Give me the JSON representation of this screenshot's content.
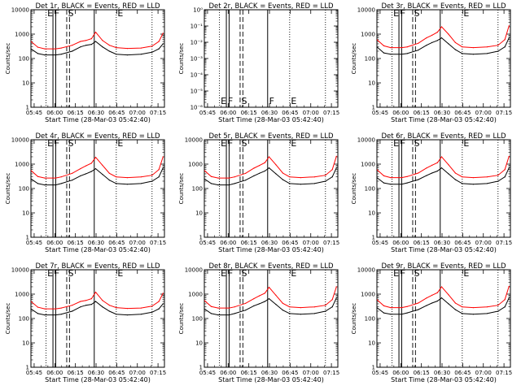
{
  "figure": {
    "colors": {
      "events": "#000000",
      "lld": "#ff0000",
      "background": "#ffffff"
    }
  },
  "shared": {
    "xlabel": "Start Time (28-Mar-03 05:42:40)",
    "ylabel": "Counts/sec",
    "x_tick_labels": [
      "05:45",
      "06:00",
      "06:15",
      "06:30",
      "06:45",
      "07:00",
      "07:15"
    ],
    "y_tick_labels": [
      "1",
      "10",
      "100",
      "1000",
      "10000"
    ],
    "y_tick_labels_empty": [
      "10⁰",
      "10⁻¹",
      "10⁻²",
      "10⁻³",
      "10⁻⁴",
      "10⁻⁵",
      "10⁻⁶"
    ]
  },
  "chart_data": [
    {
      "type": "line",
      "title": "Det 1r, BLACK = Events, RED = LLD",
      "xlabel": "Start Time (28-Mar-03 05:42:40)",
      "ylabel": "Counts/sec",
      "x_unit": "minutes after 05:42:40",
      "xlim": [
        0,
        97
      ],
      "ylim": [
        1,
        10000
      ],
      "y_scale": "log",
      "x": [
        0,
        5,
        10,
        18,
        22,
        30,
        36,
        40,
        44,
        47,
        52,
        57,
        62,
        70,
        80,
        88,
        93,
        96
      ],
      "series": [
        {
          "name": "BLACK = Events",
          "color": "#000000",
          "values": [
            250,
            160,
            140,
            140,
            150,
            200,
            300,
            350,
            380,
            500,
            300,
            200,
            150,
            140,
            150,
            180,
            250,
            400
          ]
        },
        {
          "name": "RED = LLD",
          "color": "#ff0000",
          "values": [
            500,
            290,
            250,
            250,
            270,
            350,
            500,
            550,
            650,
            1200,
            550,
            350,
            280,
            260,
            270,
            320,
            500,
            1100
          ]
        }
      ],
      "vlines": [
        {
          "x": 11,
          "style": "dotted",
          "label": "E"
        },
        {
          "x": 16,
          "style": "solid",
          "label": "F"
        },
        {
          "x": 18,
          "style": "solid"
        },
        {
          "x": 26,
          "style": "dashed",
          "label": "S"
        },
        {
          "x": 28,
          "style": "dashed"
        },
        {
          "x": 46,
          "style": "solid"
        },
        {
          "x": 62,
          "style": "dotted",
          "label": "E"
        },
        {
          "x": 88,
          "style": "dotted"
        }
      ]
    },
    {
      "type": "line",
      "title": "Det 2r, BLACK = Events, RED = LLD",
      "xlabel": "Start Time (28-Mar-03 05:42:40)",
      "ylabel": "Counts/sec",
      "x_unit": "minutes after 05:42:40",
      "xlim": [
        0,
        97
      ],
      "ylim": [
        1e-06,
        1
      ],
      "y_scale": "log",
      "x": [],
      "series": [],
      "vlines": [
        {
          "x": 11,
          "style": "dotted",
          "label": "E"
        },
        {
          "x": 16,
          "style": "solid",
          "label": "F"
        },
        {
          "x": 18,
          "style": "solid"
        },
        {
          "x": 26,
          "style": "dashed",
          "label": "S"
        },
        {
          "x": 28,
          "style": "dashed"
        },
        {
          "x": 46,
          "style": "solid",
          "label": "F"
        },
        {
          "x": 62,
          "style": "dotted",
          "label": "E"
        },
        {
          "x": 88,
          "style": "dotted"
        }
      ]
    },
    {
      "type": "line",
      "title": "Det 3r, BLACK = Events, RED = LLD",
      "xlabel": "Start Time (28-Mar-03 05:42:40)",
      "ylabel": "Counts/sec",
      "x_unit": "minutes after 05:42:40",
      "xlim": [
        0,
        97
      ],
      "ylim": [
        1,
        10000
      ],
      "y_scale": "log",
      "x": [
        0,
        5,
        10,
        18,
        22,
        30,
        36,
        40,
        44,
        47,
        52,
        57,
        62,
        70,
        80,
        88,
        93,
        96
      ],
      "series": [
        {
          "name": "BLACK = Events",
          "color": "#000000",
          "values": [
            300,
            170,
            150,
            150,
            160,
            220,
            350,
            450,
            550,
            700,
            400,
            230,
            160,
            150,
            160,
            200,
            300,
            700
          ]
        },
        {
          "name": "RED = LLD",
          "color": "#ff0000",
          "values": [
            600,
            330,
            280,
            280,
            300,
            420,
            700,
            900,
            1200,
            2000,
            1000,
            450,
            300,
            280,
            300,
            350,
            600,
            2200
          ]
        }
      ],
      "vlines": [
        {
          "x": 11,
          "style": "dotted",
          "label": "E"
        },
        {
          "x": 16,
          "style": "solid",
          "label": "F"
        },
        {
          "x": 18,
          "style": "solid"
        },
        {
          "x": 26,
          "style": "dashed",
          "label": "S"
        },
        {
          "x": 28,
          "style": "dashed"
        },
        {
          "x": 46,
          "style": "solid"
        },
        {
          "x": 62,
          "style": "dotted",
          "label": "E"
        },
        {
          "x": 88,
          "style": "dotted"
        }
      ]
    },
    {
      "type": "line",
      "title": "Det 4r, BLACK = Events, RED = LLD",
      "xlabel": "Start Time (28-Mar-03 05:42:40)",
      "ylabel": "Counts/sec",
      "x_unit": "minutes after 05:42:40",
      "xlim": [
        0,
        97
      ],
      "ylim": [
        1,
        10000
      ],
      "y_scale": "log",
      "x": [
        0,
        5,
        10,
        18,
        22,
        30,
        36,
        40,
        44,
        47,
        52,
        57,
        62,
        70,
        80,
        88,
        93,
        96
      ],
      "series": [
        {
          "name": "BLACK = Events",
          "color": "#000000",
          "values": [
            250,
            160,
            140,
            140,
            160,
            220,
            330,
            400,
            500,
            650,
            380,
            220,
            160,
            150,
            160,
            200,
            300,
            700
          ]
        },
        {
          "name": "RED = LLD",
          "color": "#ff0000",
          "values": [
            550,
            310,
            270,
            270,
            300,
            420,
            650,
            850,
            1100,
            1900,
            900,
            420,
            300,
            280,
            300,
            350,
            600,
            2000
          ]
        }
      ],
      "vlines": [
        {
          "x": 11,
          "style": "dotted",
          "label": "E"
        },
        {
          "x": 16,
          "style": "solid",
          "label": "F"
        },
        {
          "x": 18,
          "style": "solid"
        },
        {
          "x": 26,
          "style": "dashed",
          "label": "S"
        },
        {
          "x": 28,
          "style": "dashed"
        },
        {
          "x": 46,
          "style": "solid"
        },
        {
          "x": 62,
          "style": "dotted",
          "label": "E"
        },
        {
          "x": 88,
          "style": "dotted"
        }
      ]
    },
    {
      "type": "line",
      "title": "Det 5r, BLACK = Events, RED = LLD",
      "xlabel": "Start Time (28-Mar-03 05:42:40)",
      "ylabel": "Counts/sec",
      "x_unit": "minutes after 05:42:40",
      "xlim": [
        0,
        97
      ],
      "ylim": [
        1,
        10000
      ],
      "y_scale": "log",
      "x": [
        0,
        5,
        10,
        18,
        22,
        30,
        36,
        40,
        44,
        47,
        52,
        57,
        62,
        70,
        80,
        88,
        93,
        96
      ],
      "series": [
        {
          "name": "BLACK = Events",
          "color": "#000000",
          "values": [
            250,
            160,
            140,
            140,
            160,
            220,
            330,
            420,
            520,
            700,
            400,
            230,
            160,
            150,
            160,
            200,
            300,
            700
          ]
        },
        {
          "name": "RED = LLD",
          "color": "#ff0000",
          "values": [
            550,
            310,
            270,
            270,
            300,
            420,
            680,
            880,
            1150,
            2000,
            950,
            430,
            300,
            280,
            300,
            350,
            600,
            2100
          ]
        }
      ],
      "vlines": [
        {
          "x": 11,
          "style": "dotted",
          "label": "E"
        },
        {
          "x": 16,
          "style": "solid",
          "label": "F"
        },
        {
          "x": 18,
          "style": "solid"
        },
        {
          "x": 26,
          "style": "dashed",
          "label": "S"
        },
        {
          "x": 28,
          "style": "dashed"
        },
        {
          "x": 46,
          "style": "solid"
        },
        {
          "x": 62,
          "style": "dotted",
          "label": "E"
        },
        {
          "x": 88,
          "style": "dotted"
        }
      ]
    },
    {
      "type": "line",
      "title": "Det 6r, BLACK = Events, RED = LLD",
      "xlabel": "Start Time (28-Mar-03 05:42:40)",
      "ylabel": "Counts/sec",
      "x_unit": "minutes after 05:42:40",
      "xlim": [
        0,
        97
      ],
      "ylim": [
        1,
        10000
      ],
      "y_scale": "log",
      "x": [
        0,
        5,
        10,
        18,
        22,
        30,
        36,
        40,
        44,
        47,
        52,
        57,
        62,
        70,
        80,
        88,
        93,
        96
      ],
      "series": [
        {
          "name": "BLACK = Events",
          "color": "#000000",
          "values": [
            280,
            170,
            150,
            150,
            170,
            230,
            340,
            430,
            520,
            700,
            400,
            230,
            160,
            150,
            160,
            200,
            300,
            700
          ]
        },
        {
          "name": "RED = LLD",
          "color": "#ff0000",
          "values": [
            600,
            330,
            280,
            280,
            310,
            430,
            690,
            900,
            1150,
            2000,
            950,
            430,
            300,
            280,
            300,
            350,
            600,
            2100
          ]
        }
      ],
      "vlines": [
        {
          "x": 11,
          "style": "dotted",
          "label": "E"
        },
        {
          "x": 16,
          "style": "solid",
          "label": "F"
        },
        {
          "x": 18,
          "style": "solid"
        },
        {
          "x": 26,
          "style": "dashed",
          "label": "S"
        },
        {
          "x": 28,
          "style": "dashed"
        },
        {
          "x": 46,
          "style": "solid"
        },
        {
          "x": 62,
          "style": "dotted",
          "label": "E"
        },
        {
          "x": 88,
          "style": "dotted"
        }
      ]
    },
    {
      "type": "line",
      "title": "Det 7r, BLACK = Events, RED = LLD",
      "xlabel": "Start Time (28-Mar-03 05:42:40)",
      "ylabel": "Counts/sec",
      "x_unit": "minutes after 05:42:40",
      "xlim": [
        0,
        97
      ],
      "ylim": [
        1,
        10000
      ],
      "y_scale": "log",
      "x": [
        0,
        5,
        10,
        18,
        22,
        30,
        36,
        40,
        44,
        47,
        52,
        57,
        62,
        70,
        80,
        88,
        93,
        96
      ],
      "series": [
        {
          "name": "BLACK = Events",
          "color": "#000000",
          "values": [
            250,
            160,
            140,
            140,
            150,
            200,
            300,
            350,
            380,
            500,
            300,
            200,
            150,
            140,
            150,
            180,
            250,
            400
          ]
        },
        {
          "name": "RED = LLD",
          "color": "#ff0000",
          "values": [
            500,
            290,
            250,
            250,
            270,
            350,
            500,
            550,
            650,
            1200,
            550,
            350,
            280,
            260,
            270,
            320,
            500,
            1100
          ]
        }
      ],
      "vlines": [
        {
          "x": 11,
          "style": "dotted",
          "label": "E"
        },
        {
          "x": 16,
          "style": "solid",
          "label": "F"
        },
        {
          "x": 18,
          "style": "solid"
        },
        {
          "x": 26,
          "style": "dashed",
          "label": "S"
        },
        {
          "x": 28,
          "style": "dashed"
        },
        {
          "x": 46,
          "style": "solid"
        },
        {
          "x": 62,
          "style": "dotted",
          "label": "E"
        },
        {
          "x": 88,
          "style": "dotted"
        }
      ]
    },
    {
      "type": "line",
      "title": "Det 8r, BLACK = Events, RED = LLD",
      "xlabel": "Start Time (28-Mar-03 05:42:40)",
      "ylabel": "Counts/sec",
      "x_unit": "minutes after 05:42:40",
      "xlim": [
        0,
        97
      ],
      "ylim": [
        1,
        10000
      ],
      "y_scale": "log",
      "x": [
        0,
        5,
        10,
        18,
        22,
        30,
        36,
        40,
        44,
        47,
        52,
        57,
        62,
        70,
        80,
        88,
        93,
        96
      ],
      "series": [
        {
          "name": "BLACK = Events",
          "color": "#000000",
          "values": [
            250,
            160,
            140,
            140,
            160,
            220,
            330,
            400,
            500,
            650,
            380,
            220,
            160,
            150,
            160,
            200,
            300,
            700
          ]
        },
        {
          "name": "RED = LLD",
          "color": "#ff0000",
          "values": [
            550,
            310,
            270,
            270,
            300,
            420,
            650,
            850,
            1100,
            1900,
            900,
            420,
            300,
            280,
            300,
            350,
            600,
            2000
          ]
        }
      ],
      "vlines": [
        {
          "x": 11,
          "style": "dotted",
          "label": "E"
        },
        {
          "x": 16,
          "style": "solid",
          "label": "F"
        },
        {
          "x": 18,
          "style": "solid"
        },
        {
          "x": 26,
          "style": "dashed",
          "label": "S"
        },
        {
          "x": 28,
          "style": "dashed"
        },
        {
          "x": 46,
          "style": "solid"
        },
        {
          "x": 62,
          "style": "dotted",
          "label": "E"
        },
        {
          "x": 88,
          "style": "dotted"
        }
      ]
    },
    {
      "type": "line",
      "title": "Det 9r, BLACK = Events, RED = LLD",
      "xlabel": "Start Time (28-Mar-03 05:42:40)",
      "ylabel": "Counts/sec",
      "x_unit": "minutes after 05:42:40",
      "xlim": [
        0,
        97
      ],
      "ylim": [
        1,
        10000
      ],
      "y_scale": "log",
      "x": [
        0,
        5,
        10,
        18,
        22,
        30,
        36,
        40,
        44,
        47,
        52,
        57,
        62,
        70,
        80,
        88,
        93,
        96
      ],
      "series": [
        {
          "name": "BLACK = Events",
          "color": "#000000",
          "values": [
            280,
            170,
            150,
            150,
            170,
            230,
            340,
            430,
            520,
            700,
            400,
            230,
            160,
            150,
            160,
            200,
            300,
            700
          ]
        },
        {
          "name": "RED = LLD",
          "color": "#ff0000",
          "values": [
            600,
            330,
            280,
            280,
            310,
            430,
            690,
            900,
            1150,
            2000,
            950,
            430,
            300,
            280,
            300,
            350,
            600,
            2100
          ]
        }
      ],
      "vlines": [
        {
          "x": 11,
          "style": "dotted",
          "label": "E"
        },
        {
          "x": 16,
          "style": "solid",
          "label": "F"
        },
        {
          "x": 18,
          "style": "solid"
        },
        {
          "x": 26,
          "style": "dashed",
          "label": "S"
        },
        {
          "x": 28,
          "style": "dashed"
        },
        {
          "x": 46,
          "style": "solid"
        },
        {
          "x": 62,
          "style": "dotted",
          "label": "E"
        },
        {
          "x": 88,
          "style": "dotted"
        }
      ]
    }
  ]
}
